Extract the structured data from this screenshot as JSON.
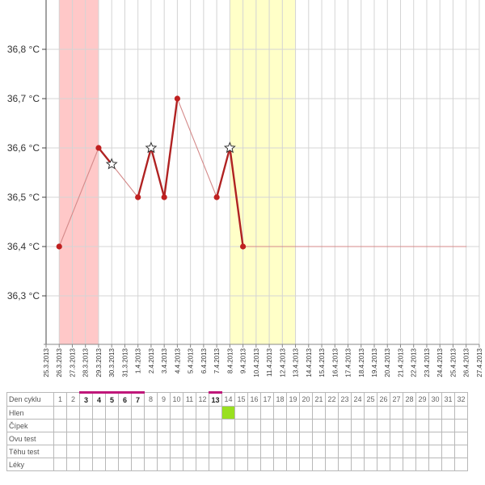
{
  "chart_data": {
    "type": "line",
    "y_unit": "°C",
    "ylim": [
      36.2,
      36.9
    ],
    "y_ticks": [
      "36,3 °C",
      "36,4 °C",
      "36,5 °C",
      "36,6 °C",
      "36,7 °C",
      "36,8 °C"
    ],
    "y_tick_values": [
      36.3,
      36.4,
      36.5,
      36.6,
      36.7,
      36.8
    ],
    "x_tick_labels": [
      "25.3.2013",
      "26.3.2013",
      "27.3.2013",
      "28.3.2013",
      "29.3.2013",
      "30.3.2013",
      "31.3.2013",
      "1.4.2013",
      "2.4.2013",
      "3.4.2013",
      "4.4.2013",
      "5.4.2013",
      "6.4.2013",
      "7.4.2013",
      "8.4.2013",
      "9.4.2013",
      "10.4.2013",
      "11.4.2013",
      "12.4.2013",
      "13.4.2013",
      "14.4.2013",
      "15.4.2013",
      "16.4.2013",
      "17.4.2013",
      "18.4.2013",
      "19.4.2013",
      "20.4.2013",
      "21.4.2013",
      "22.4.2013",
      "23.4.2013",
      "24.4.2013",
      "25.4.2013",
      "26.4.2013",
      "27.4.2013"
    ],
    "series": [
      {
        "values": [
          {
            "date": "26.3.2013",
            "y": 36.4,
            "marker": "dot"
          },
          {
            "date": "29.3.2013",
            "y": 36.6,
            "marker": "dot"
          },
          {
            "date": "30.3.2013",
            "y": 36.567,
            "marker": "star"
          },
          {
            "date": "1.4.2013",
            "y": 36.5,
            "marker": "dot"
          },
          {
            "date": "2.4.2013",
            "y": 36.6,
            "marker": "star"
          },
          {
            "date": "3.4.2013",
            "y": 36.5,
            "marker": "dot"
          },
          {
            "date": "4.4.2013",
            "y": 36.7,
            "marker": "dot"
          },
          {
            "date": "7.4.2013",
            "y": 36.5,
            "marker": "dot"
          },
          {
            "date": "8.4.2013",
            "y": 36.6,
            "marker": "star"
          },
          {
            "date": "9.4.2013",
            "y": 36.4,
            "marker": "dot"
          },
          {
            "date": "26.4.2013",
            "y": 36.4,
            "marker": "none"
          }
        ]
      }
    ],
    "bands": [
      {
        "from": "26.3.2013",
        "to": "29.3.2013",
        "color": "#ffc8c8"
      },
      {
        "from": "8.4.2013",
        "to": "13.4.2013",
        "color": "#ffffc8"
      }
    ],
    "grid": true,
    "line_color": "#b02222",
    "dot_color": "#c02020"
  },
  "table": {
    "rows": [
      "Den cyklu",
      "Hlen",
      "Čípek",
      "Ovu test",
      "Těhu test",
      "Léky"
    ],
    "days": [
      "1",
      "2",
      "3",
      "4",
      "5",
      "6",
      "7",
      "8",
      "9",
      "10",
      "11",
      "12",
      "13",
      "14",
      "15",
      "16",
      "17",
      "18",
      "19",
      "20",
      "21",
      "22",
      "23",
      "24",
      "25",
      "26",
      "27",
      "28",
      "29",
      "30",
      "31",
      "32"
    ],
    "marked_days": [
      "3",
      "4",
      "5",
      "6",
      "7",
      "13"
    ],
    "hlen_days": [
      "14"
    ],
    "marker_color": "#c0177a",
    "hlen_color": "#99e020"
  }
}
